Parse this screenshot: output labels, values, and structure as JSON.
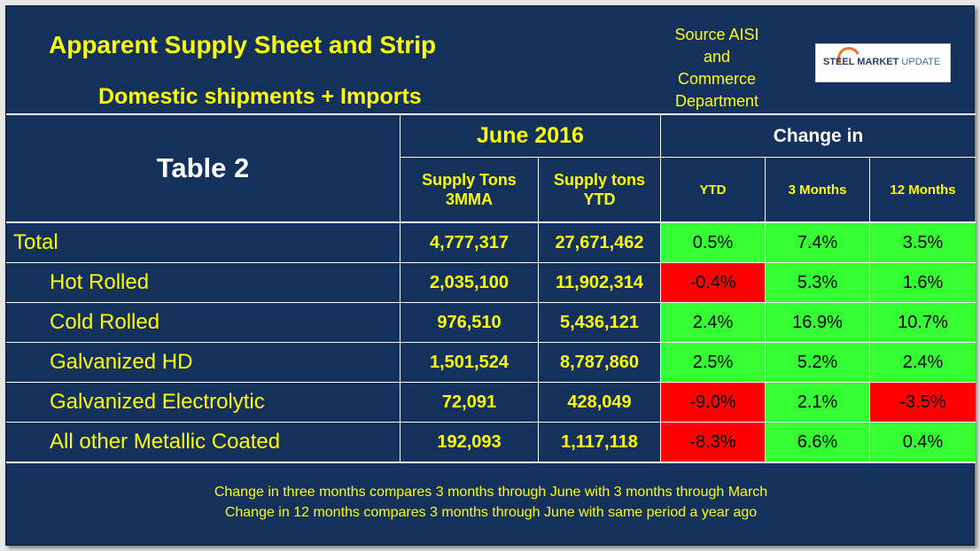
{
  "header": {
    "title": "Apparent Supply Sheet and Strip",
    "subtitle": "Domestic shipments + Imports",
    "source_lines": [
      "Source AISI",
      "and",
      "Commerce",
      "Department"
    ],
    "logo_main": "STEEL MARKET",
    "logo_accent": "UPDATE"
  },
  "table": {
    "label": "Table 2",
    "period": "June 2016",
    "change_group": "Change in",
    "columns": {
      "supply_3mma": [
        "Supply Tons",
        "3MMA"
      ],
      "supply_ytd": [
        "Supply tons",
        "YTD"
      ],
      "ytd": "YTD",
      "m3": "3 Months",
      "m12": "12 Months"
    },
    "rows": [
      {
        "label": "Total",
        "mma": "4,777,317",
        "ytd_tons": "27,671,462",
        "ytd": "0.5%",
        "m3": "7.4%",
        "m12": "3.5%"
      },
      {
        "label": "Hot Rolled",
        "mma": "2,035,100",
        "ytd_tons": "11,902,314",
        "ytd": "-0.4%",
        "m3": "5.3%",
        "m12": "1.6%"
      },
      {
        "label": "Cold Rolled",
        "mma": "976,510",
        "ytd_tons": "5,436,121",
        "ytd": "2.4%",
        "m3": "16.9%",
        "m12": "10.7%"
      },
      {
        "label": "Galvanized HD",
        "mma": "1,501,524",
        "ytd_tons": "8,787,860",
        "ytd": "2.5%",
        "m3": "5.2%",
        "m12": "2.4%"
      },
      {
        "label": "Galvanized Electrolytic",
        "mma": "72,091",
        "ytd_tons": "428,049",
        "ytd": "-9.0%",
        "m3": "2.1%",
        "m12": "-3.5%"
      },
      {
        "label": "All other Metallic Coated",
        "mma": "192,093",
        "ytd_tons": "1,117,118",
        "ytd": "-8.3%",
        "m3": "6.6%",
        "m12": "0.4%"
      }
    ],
    "colors": {
      "positive": "#33ff33",
      "negative": "#ff0000"
    }
  },
  "footer": {
    "line1": "Change in three months compares 3 months through June with 3 months through March",
    "line2": "Change in 12 months compares 3 months through June with same period a year ago"
  }
}
